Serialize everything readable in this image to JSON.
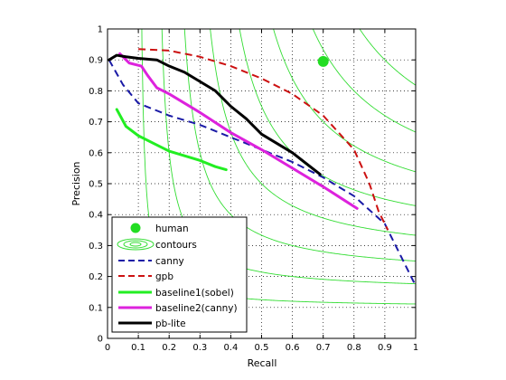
{
  "chart_data": {
    "type": "line",
    "title": "",
    "xlabel": "Recall",
    "ylabel": "Precision",
    "xlim": [
      0,
      1
    ],
    "ylim": [
      0,
      1
    ],
    "xticks": [
      "0",
      "0.1",
      "0.2",
      "0.3",
      "0.4",
      "0.5",
      "0.6",
      "0.7",
      "0.8",
      "0.9",
      "1"
    ],
    "yticks": [
      "0",
      "0.1",
      "0.2",
      "0.3",
      "0.4",
      "0.5",
      "0.6",
      "0.7",
      "0.8",
      "0.9",
      "1"
    ],
    "grid": "dotted",
    "legend_position": "bottom-left",
    "colors": {
      "contours": "#33dd33",
      "human": "#22dd22",
      "canny": "#1a1aa6",
      "gpb": "#cc1111",
      "baseline1": "#22ee22",
      "baseline2": "#dd22dd",
      "pblite": "#000000"
    },
    "contour_levels": [
      0.2,
      0.3,
      0.4,
      0.5,
      0.6,
      0.7,
      0.8,
      0.9
    ],
    "human": {
      "name": "human",
      "recall": 0.7,
      "precision": 0.895
    },
    "contours_name": "contours",
    "series": [
      {
        "key": "canny",
        "name": "canny",
        "style": "dashed",
        "x": [
          0.005,
          0.05,
          0.1,
          0.2,
          0.3,
          0.4,
          0.5,
          0.6,
          0.7,
          0.8,
          0.9,
          1.0
        ],
        "y": [
          0.9,
          0.82,
          0.76,
          0.72,
          0.69,
          0.65,
          0.61,
          0.57,
          0.52,
          0.46,
          0.37,
          0.17
        ]
      },
      {
        "key": "gpb",
        "name": "gpb",
        "style": "dashed",
        "x": [
          0.1,
          0.2,
          0.3,
          0.4,
          0.5,
          0.6,
          0.7,
          0.8,
          0.85,
          0.88,
          0.91
        ],
        "y": [
          0.935,
          0.93,
          0.91,
          0.88,
          0.84,
          0.79,
          0.72,
          0.61,
          0.5,
          0.41,
          0.35
        ]
      },
      {
        "key": "baseline1",
        "name": "baseline1(sobel)",
        "style": "solid",
        "x": [
          0.03,
          0.06,
          0.1,
          0.15,
          0.2,
          0.25,
          0.3,
          0.35,
          0.385
        ],
        "y": [
          0.74,
          0.685,
          0.655,
          0.63,
          0.605,
          0.59,
          0.575,
          0.555,
          0.545
        ]
      },
      {
        "key": "baseline2",
        "name": "baseline2(canny)",
        "style": "solid",
        "x": [
          0.04,
          0.07,
          0.11,
          0.13,
          0.16,
          0.2,
          0.25,
          0.3,
          0.4,
          0.5,
          0.6,
          0.7,
          0.81
        ],
        "y": [
          0.92,
          0.89,
          0.88,
          0.85,
          0.81,
          0.79,
          0.76,
          0.73,
          0.665,
          0.61,
          0.55,
          0.49,
          0.42
        ]
      },
      {
        "key": "pblite",
        "name": "pb-lite",
        "style": "solid",
        "x": [
          0.005,
          0.03,
          0.06,
          0.1,
          0.16,
          0.2,
          0.25,
          0.3,
          0.35,
          0.4,
          0.45,
          0.5,
          0.6,
          0.69
        ],
        "y": [
          0.9,
          0.915,
          0.91,
          0.905,
          0.9,
          0.88,
          0.86,
          0.83,
          0.8,
          0.75,
          0.71,
          0.66,
          0.6,
          0.53
        ]
      }
    ]
  }
}
